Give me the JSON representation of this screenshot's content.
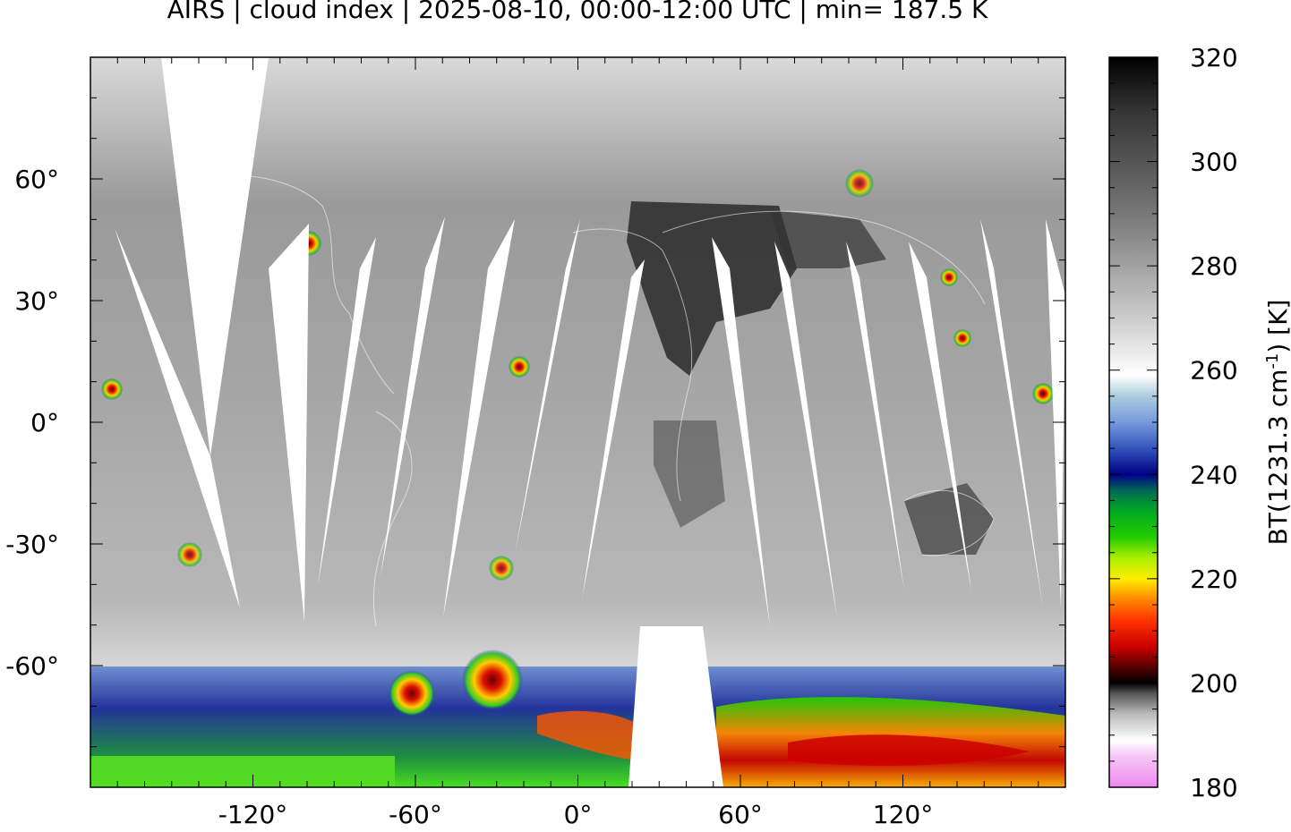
{
  "title": "AIRS | cloud index | 2025-08-10, 00:00-12:00 UTC | min= 187.5 K",
  "map": {
    "projection": "equirectangular",
    "lon_range": [
      -180,
      180
    ],
    "lat_range": [
      -90,
      90
    ],
    "x_ticks": [
      {
        "value": -120,
        "label": "-120°"
      },
      {
        "value": -60,
        "label": "-60°"
      },
      {
        "value": 0,
        "label": "0°"
      },
      {
        "value": 60,
        "label": "60°"
      },
      {
        "value": 120,
        "label": "120°"
      }
    ],
    "y_ticks": [
      {
        "value": 60,
        "label": "60°"
      },
      {
        "value": 30,
        "label": "30°"
      },
      {
        "value": 0,
        "label": "0°"
      },
      {
        "value": -30,
        "label": "-30°"
      },
      {
        "value": -60,
        "label": "-60°"
      }
    ]
  },
  "colorbar": {
    "label_main": "BT(1231.3 cm",
    "label_sup": "-1",
    "label_tail": ") [K]",
    "range": [
      180,
      320
    ],
    "ticks": [
      {
        "value": 320,
        "label": "320"
      },
      {
        "value": 300,
        "label": "300"
      },
      {
        "value": 280,
        "label": "280"
      },
      {
        "value": 260,
        "label": "260"
      },
      {
        "value": 240,
        "label": "240"
      },
      {
        "value": 220,
        "label": "220"
      },
      {
        "value": 200,
        "label": "200"
      },
      {
        "value": 180,
        "label": "180"
      }
    ],
    "stops": [
      {
        "value": 180,
        "color": "#ee88ee"
      },
      {
        "value": 186,
        "color": "#f6c8f6"
      },
      {
        "value": 189,
        "color": "#ffffff"
      },
      {
        "value": 194,
        "color": "#bbbbbb"
      },
      {
        "value": 198,
        "color": "#555555"
      },
      {
        "value": 200,
        "color": "#000000"
      },
      {
        "value": 203,
        "color": "#550000"
      },
      {
        "value": 207,
        "color": "#cc0000"
      },
      {
        "value": 212,
        "color": "#ff3300"
      },
      {
        "value": 216,
        "color": "#ff8800"
      },
      {
        "value": 220,
        "color": "#ffee00"
      },
      {
        "value": 224,
        "color": "#aaee00"
      },
      {
        "value": 228,
        "color": "#22cc00"
      },
      {
        "value": 233,
        "color": "#00aa22"
      },
      {
        "value": 237,
        "color": "#006655"
      },
      {
        "value": 240,
        "color": "#000088"
      },
      {
        "value": 245,
        "color": "#3355bb"
      },
      {
        "value": 250,
        "color": "#7799dd"
      },
      {
        "value": 255,
        "color": "#aaccdd"
      },
      {
        "value": 259,
        "color": "#ffffff"
      },
      {
        "value": 270,
        "color": "#cccccc"
      },
      {
        "value": 290,
        "color": "#777777"
      },
      {
        "value": 310,
        "color": "#333333"
      },
      {
        "value": 320,
        "color": "#000000"
      }
    ]
  },
  "colors": {
    "no_data": "#ffffff",
    "ocean_bt": "#a6a6a6",
    "land_dark": "#2a2a2a",
    "polar_cloud": "#2b44b0",
    "convective_core": "#d40000",
    "green_cloud": "#33cc22"
  }
}
